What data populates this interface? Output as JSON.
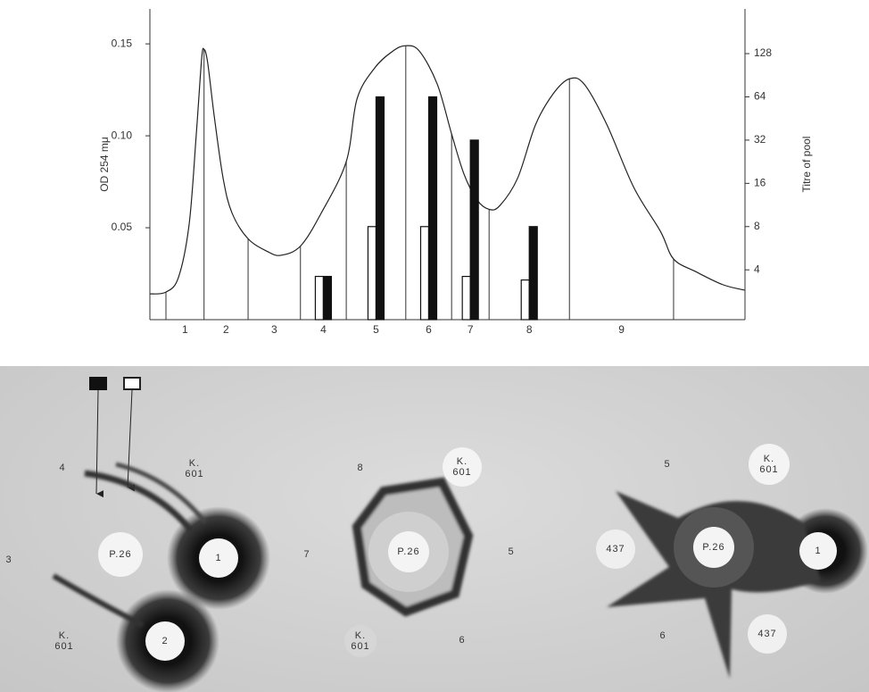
{
  "chart_data": {
    "type": "bar",
    "y_label": "OD 254 mμ",
    "y2_label": "Titre of pool",
    "xlim": [
      0,
      100
    ],
    "ylim": [
      0,
      0.169
    ],
    "yticks": [
      0.05,
      {
        "value": 0.1,
        "label": "0.10"
      },
      0.15
    ],
    "y2lim": [
      1.8,
      262
    ],
    "y2ticks": [
      4,
      8,
      16,
      32,
      64,
      128
    ],
    "y2_log": true,
    "categories": [
      "1",
      "2",
      "3",
      "4",
      "5",
      "6",
      "7",
      "8",
      "9"
    ],
    "fraction_bounds": [
      2.7,
      9.1,
      16.5,
      25.3,
      33.0,
      43.0,
      50.7,
      57.0,
      70.5,
      88.0
    ],
    "series": [
      {
        "type": "line",
        "color": "#222222",
        "x": [
          0,
          2.7,
          4.8,
          6.6,
          7.8,
          8.7,
          9.1,
          9.7,
          10.8,
          12.3,
          13.8,
          16.5,
          19.8,
          22.0,
          25.3,
          28.8,
          33.0,
          34.8,
          37.8,
          40.8,
          43.0,
          45.3,
          48.3,
          50.7,
          52.8,
          55.0,
          57.0,
          58.8,
          61.8,
          64.8,
          67.8,
          70.5,
          73.0,
          76.8,
          81.3,
          85.8,
          88.0,
          91.8,
          96.3,
          100
        ],
        "values": [
          0.014,
          0.015,
          0.023,
          0.052,
          0.101,
          0.142,
          0.147,
          0.14,
          0.111,
          0.077,
          0.058,
          0.044,
          0.037,
          0.035,
          0.04,
          0.058,
          0.086,
          0.12,
          0.137,
          0.146,
          0.149,
          0.146,
          0.128,
          0.101,
          0.079,
          0.065,
          0.06,
          0.062,
          0.077,
          0.106,
          0.123,
          0.131,
          0.128,
          0.106,
          0.072,
          0.048,
          0.033,
          0.026,
          0.019,
          0.016
        ]
      },
      {
        "type": "bar",
        "axis": "y2",
        "color": "#ffffff",
        "values": [
          null,
          null,
          null,
          3.6,
          8,
          8,
          3.6,
          3.4,
          null
        ]
      },
      {
        "type": "bar",
        "axis": "y2",
        "color": "#111111",
        "values": [
          null,
          null,
          null,
          3.6,
          64,
          64,
          32,
          8,
          null
        ]
      }
    ]
  },
  "photo": {
    "labels": [
      "4",
      "K.\n601",
      "3",
      "P.26",
      "1",
      "K.\n601",
      "2",
      "8",
      "K.\n601",
      "7",
      "P.26",
      "5",
      "K.\n601",
      "6",
      "5",
      "K.\n601",
      "437",
      "P.26",
      "1",
      "6",
      "437"
    ]
  }
}
